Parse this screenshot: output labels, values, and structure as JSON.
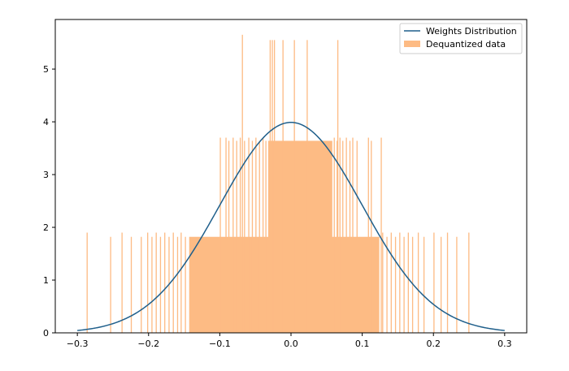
{
  "chart_data": {
    "type": "bar",
    "title": "",
    "xlabel": "",
    "ylabel": "",
    "xlim": [
      -0.331,
      0.331
    ],
    "ylim": [
      0,
      5.94
    ],
    "xticks": [
      "−0.3",
      "−0.2",
      "−0.1",
      "0.0",
      "0.1",
      "0.2",
      "0.3"
    ],
    "xtick_values": [
      -0.3,
      -0.2,
      -0.1,
      0.0,
      0.1,
      0.2,
      0.3
    ],
    "yticks": [
      "0",
      "1",
      "2",
      "3",
      "4",
      "5"
    ],
    "ytick_values": [
      0,
      1,
      2,
      3,
      4,
      5
    ],
    "grid": false,
    "legend_position": "top-right",
    "series": [
      {
        "name": "Weights Distribution",
        "type": "line",
        "color": "#1f5f8b",
        "distribution": "normal",
        "mean": 0.0,
        "std": 0.1,
        "x_range": [
          -0.3,
          0.3
        ]
      },
      {
        "name": "Dequantized data",
        "type": "histogram",
        "color": "#fdbb84",
        "bin_width": 0.0015,
        "filled_ranges": [
          {
            "from": -0.143,
            "to": 0.124,
            "height": 1.82
          },
          {
            "from": -0.032,
            "to": 0.058,
            "height": 3.64
          }
        ],
        "bars": [
          [
            -0.287,
            1.9
          ],
          [
            -0.254,
            1.82
          ],
          [
            -0.238,
            1.9
          ],
          [
            -0.225,
            1.82
          ],
          [
            -0.211,
            1.82
          ],
          [
            -0.202,
            1.9
          ],
          [
            -0.196,
            1.82
          ],
          [
            -0.19,
            1.9
          ],
          [
            -0.184,
            1.82
          ],
          [
            -0.178,
            1.9
          ],
          [
            -0.172,
            1.82
          ],
          [
            -0.166,
            1.9
          ],
          [
            -0.16,
            1.82
          ],
          [
            -0.155,
            1.9
          ],
          [
            -0.149,
            1.82
          ],
          [
            -0.1,
            3.7
          ],
          [
            -0.092,
            3.7
          ],
          [
            -0.088,
            3.64
          ],
          [
            -0.082,
            3.7
          ],
          [
            -0.077,
            3.64
          ],
          [
            -0.072,
            3.7
          ],
          [
            -0.069,
            5.65
          ],
          [
            -0.066,
            3.64
          ],
          [
            -0.06,
            3.7
          ],
          [
            -0.055,
            3.64
          ],
          [
            -0.05,
            3.7
          ],
          [
            -0.045,
            3.64
          ],
          [
            -0.04,
            3.7
          ],
          [
            -0.036,
            3.64
          ],
          [
            -0.03,
            5.55
          ],
          [
            -0.027,
            5.55
          ],
          [
            -0.024,
            5.55
          ],
          [
            -0.012,
            5.55
          ],
          [
            0.004,
            5.55
          ],
          [
            0.022,
            5.55
          ],
          [
            0.065,
            5.55
          ],
          [
            0.06,
            3.7
          ],
          [
            0.064,
            3.64
          ],
          [
            0.068,
            3.7
          ],
          [
            0.072,
            3.64
          ],
          [
            0.077,
            3.7
          ],
          [
            0.082,
            3.64
          ],
          [
            0.086,
            3.7
          ],
          [
            0.092,
            3.64
          ],
          [
            0.108,
            3.7
          ],
          [
            0.112,
            3.64
          ],
          [
            0.126,
            3.7
          ],
          [
            0.128,
            1.9
          ],
          [
            0.134,
            1.82
          ],
          [
            0.14,
            1.9
          ],
          [
            0.146,
            1.82
          ],
          [
            0.152,
            1.9
          ],
          [
            0.158,
            1.82
          ],
          [
            0.164,
            1.9
          ],
          [
            0.17,
            1.82
          ],
          [
            0.178,
            1.9
          ],
          [
            0.186,
            1.82
          ],
          [
            0.2,
            1.9
          ],
          [
            0.21,
            1.82
          ],
          [
            0.219,
            1.9
          ],
          [
            0.232,
            1.82
          ],
          [
            0.249,
            1.9
          ]
        ]
      }
    ]
  }
}
